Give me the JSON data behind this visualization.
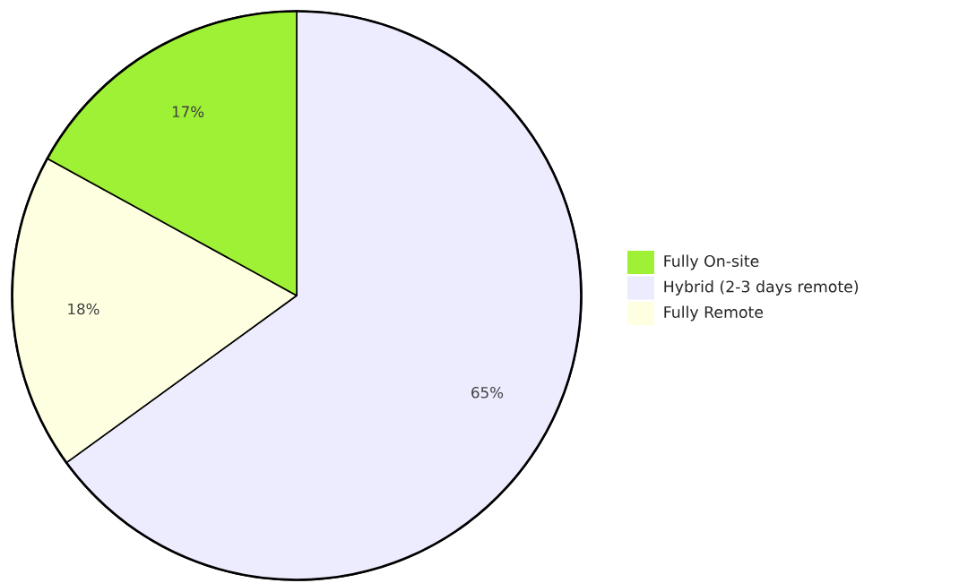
{
  "chart_data": {
    "type": "pie",
    "categories": [
      "Fully On-site",
      "Hybrid (2-3 days remote)",
      "Fully Remote"
    ],
    "values": [
      17,
      65,
      18
    ],
    "colors": [
      "#9ef135",
      "#ececfe",
      "#fefee0"
    ],
    "value_labels": [
      "17%",
      "65%",
      "18%"
    ],
    "legend": "right"
  }
}
